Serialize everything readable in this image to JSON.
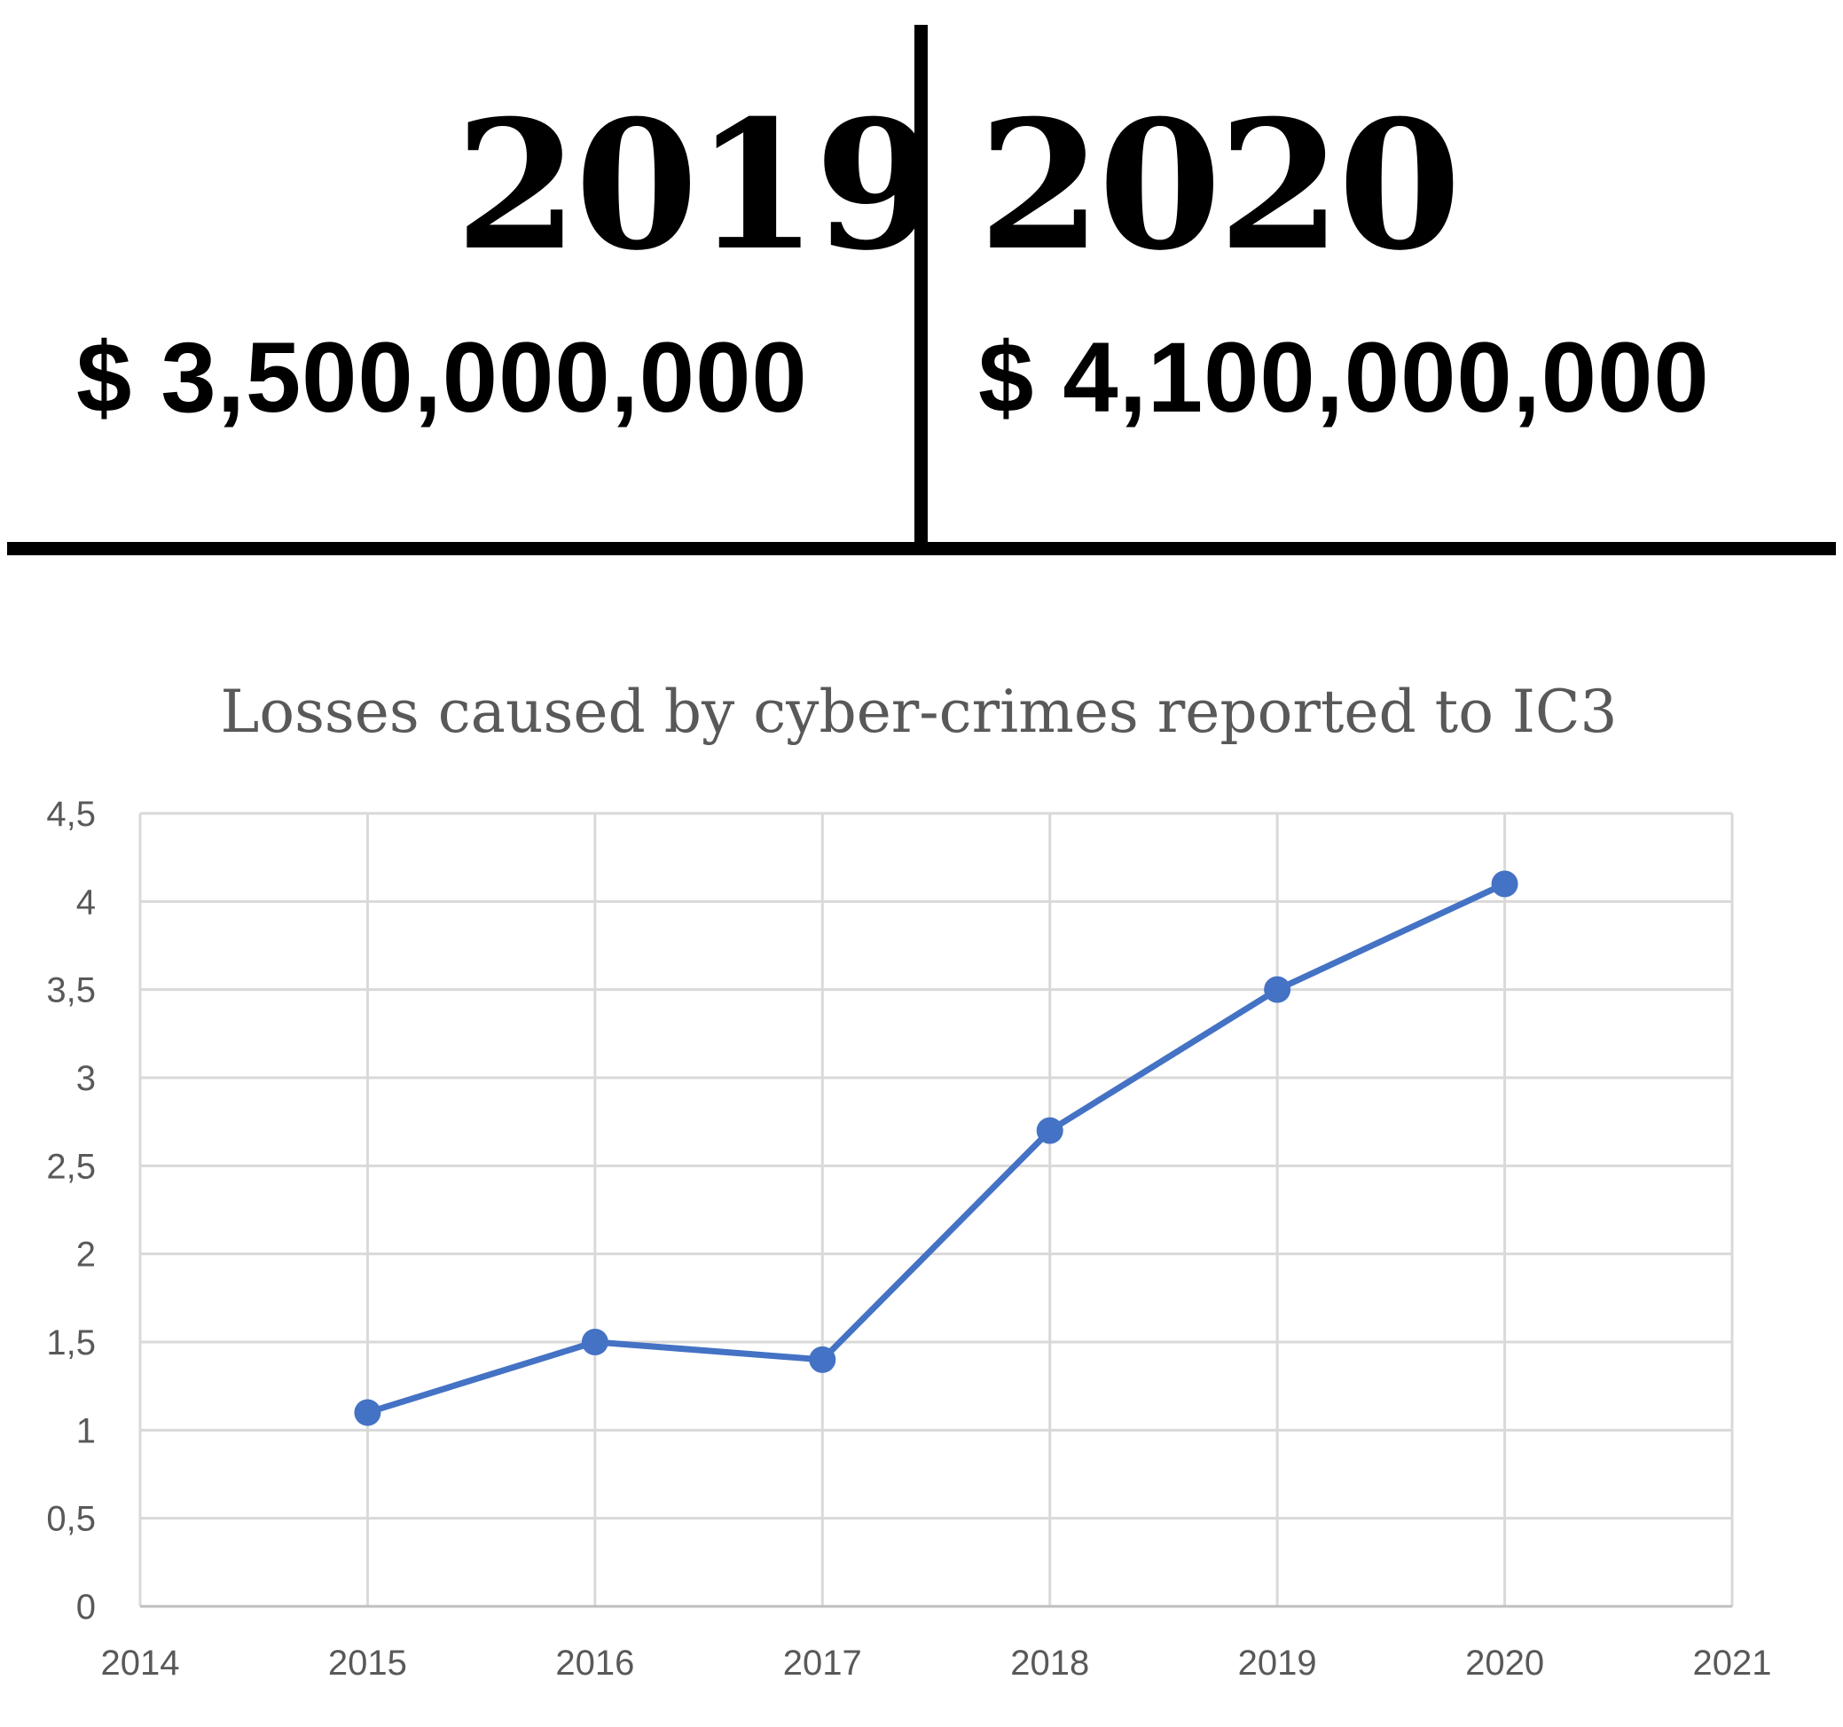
{
  "summary": {
    "left": {
      "year": "2019",
      "amount": "$ 3,500,000,000"
    },
    "right": {
      "year": "2020",
      "amount": "$ 4,100,000,000"
    }
  },
  "chart_data": {
    "type": "line",
    "title": "Losses caused by cyber-crimes reported to IC3",
    "xlabel": "",
    "ylabel": "",
    "x": [
      2015,
      2016,
      2017,
      2018,
      2019,
      2020
    ],
    "series": [
      {
        "values": [
          1.1,
          1.5,
          1.4,
          2.7,
          3.5,
          4.1
        ],
        "color": "#4472C4"
      }
    ],
    "xlim": [
      2014,
      2021
    ],
    "ylim": [
      0,
      4.5
    ],
    "x_ticks": [
      "2014",
      "2015",
      "2016",
      "2017",
      "2018",
      "2019",
      "2020",
      "2021"
    ],
    "y_ticks": [
      "0",
      "0,5",
      "1",
      "1,5",
      "2",
      "2,5",
      "3",
      "3,5",
      "4",
      "4,5"
    ],
    "grid": true,
    "legend": "none"
  }
}
